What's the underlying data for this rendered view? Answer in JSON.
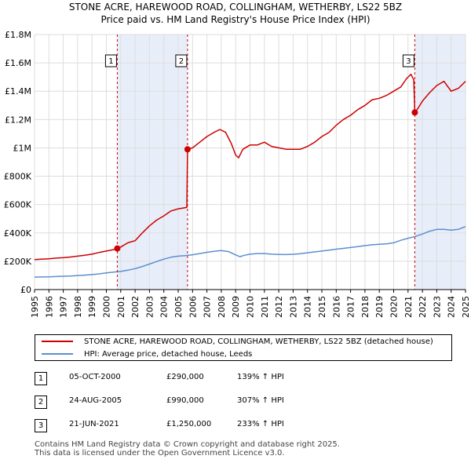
{
  "header": {
    "title_line1": "STONE ACRE, HAREWOOD ROAD, COLLINGHAM, WETHERBY, LS22 5BZ",
    "title_line2": "Price paid vs. HM Land Registry's House Price Index (HPI)"
  },
  "colors": {
    "property": "#cc0000",
    "hpi": "#5b8fd0",
    "shade": "#e8eef9",
    "marker_line": "#cc0000"
  },
  "chart_data": {
    "type": "line",
    "title": "STONE ACRE, HAREWOOD ROAD, COLLINGHAM, WETHERBY, LS22 5BZ",
    "subtitle": "Price paid vs. HM Land Registry's House Price Index (HPI)",
    "xlabel": "",
    "ylabel": "",
    "xlim": [
      1995,
      2025
    ],
    "ylim": [
      0,
      1800000
    ],
    "y_ticks": [
      0,
      200000,
      400000,
      600000,
      800000,
      1000000,
      1200000,
      1400000,
      1600000,
      1800000
    ],
    "y_tick_labels": [
      "£0",
      "£200K",
      "£400K",
      "£600K",
      "£800K",
      "£1M",
      "£1.2M",
      "£1.4M",
      "£1.6M",
      "£1.8M"
    ],
    "x_ticks": [
      1995,
      1996,
      1997,
      1998,
      1999,
      2000,
      2001,
      2002,
      2003,
      2004,
      2005,
      2006,
      2007,
      2008,
      2009,
      2010,
      2011,
      2012,
      2013,
      2014,
      2015,
      2016,
      2017,
      2018,
      2019,
      2020,
      2021,
      2022,
      2023,
      2024,
      2025
    ],
    "x_tick_labels": [
      "1995",
      "1996",
      "1997",
      "1998",
      "1999",
      "2000",
      "2001",
      "2002",
      "2003",
      "2004",
      "2005",
      "2006",
      "2007",
      "2008",
      "2009",
      "2010",
      "2011",
      "2012",
      "2013",
      "2014",
      "2015",
      "2016",
      "2017",
      "2018",
      "2019",
      "2020",
      "2021",
      "2022",
      "2023",
      "2024",
      "2025"
    ],
    "grid": true,
    "shaded_spans": [
      [
        2000.76,
        2005.65
      ],
      [
        2021.47,
        2025.0
      ]
    ],
    "series": [
      {
        "name": "STONE ACRE, HAREWOOD ROAD, COLLINGHAM, WETHERBY, LS22 5BZ (detached house)",
        "color": "#cc0000",
        "x": [
          1995,
          1995.5,
          1996,
          1996.5,
          1997,
          1997.5,
          1998,
          1998.5,
          1999,
          1999.5,
          2000,
          2000.5,
          2000.76,
          2001,
          2001.5,
          2002,
          2002.5,
          2003,
          2003.5,
          2004,
          2004.5,
          2005,
          2005.3,
          2005.6,
          2005.65,
          2006,
          2006.5,
          2007,
          2007.5,
          2007.9,
          2008.3,
          2008.7,
          2009.0,
          2009.2,
          2009.5,
          2010,
          2010.5,
          2011,
          2011.5,
          2012,
          2012.5,
          2013,
          2013.5,
          2014,
          2014.5,
          2015,
          2015.5,
          2016,
          2016.5,
          2017,
          2017.5,
          2018,
          2018.5,
          2019,
          2019.5,
          2020,
          2020.5,
          2020.9,
          2021.2,
          2021.4,
          2021.47,
          2021.7,
          2022,
          2022.5,
          2023,
          2023.5,
          2024,
          2024.5,
          2025
        ],
        "y": [
          212000,
          215000,
          217000,
          222000,
          225000,
          230000,
          236000,
          242000,
          250000,
          262000,
          272000,
          282000,
          290000,
          300000,
          330000,
          345000,
          400000,
          450000,
          490000,
          520000,
          555000,
          570000,
          575000,
          580000,
          990000,
          1000000,
          1040000,
          1080000,
          1110000,
          1130000,
          1110000,
          1030000,
          950000,
          930000,
          990000,
          1020000,
          1020000,
          1040000,
          1010000,
          1000000,
          990000,
          990000,
          990000,
          1010000,
          1040000,
          1080000,
          1110000,
          1160000,
          1200000,
          1230000,
          1270000,
          1300000,
          1340000,
          1350000,
          1370000,
          1400000,
          1430000,
          1490000,
          1520000,
          1480000,
          1250000,
          1280000,
          1330000,
          1390000,
          1440000,
          1470000,
          1400000,
          1420000,
          1470000
        ]
      },
      {
        "name": "HPI: Average price, detached house, Leeds",
        "color": "#5b8fd0",
        "x": [
          1995,
          1995.5,
          1996,
          1996.5,
          1997,
          1997.5,
          1998,
          1998.5,
          1999,
          1999.5,
          2000,
          2000.5,
          2001,
          2001.5,
          2002,
          2002.5,
          2003,
          2003.5,
          2004,
          2004.5,
          2005,
          2005.5,
          2006,
          2006.5,
          2007,
          2007.5,
          2008,
          2008.5,
          2009,
          2009.3,
          2009.6,
          2010,
          2010.5,
          2011,
          2011.5,
          2012,
          2012.5,
          2013,
          2013.5,
          2014,
          2014.5,
          2015,
          2015.5,
          2016,
          2016.5,
          2017,
          2017.5,
          2018,
          2018.5,
          2019,
          2019.5,
          2020,
          2020.5,
          2021,
          2021.5,
          2022,
          2022.5,
          2023,
          2023.5,
          2024,
          2024.5,
          2025
        ],
        "y": [
          88000,
          89000,
          90000,
          92000,
          94000,
          96000,
          99000,
          102000,
          106000,
          111000,
          118000,
          123000,
          128000,
          137000,
          148000,
          163000,
          180000,
          198000,
          215000,
          228000,
          236000,
          240000,
          246000,
          254000,
          263000,
          270000,
          275000,
          268000,
          245000,
          232000,
          242000,
          250000,
          254000,
          254000,
          250000,
          248000,
          247000,
          249000,
          253000,
          260000,
          266000,
          272000,
          278000,
          285000,
          291000,
          297000,
          303000,
          310000,
          316000,
          320000,
          323000,
          330000,
          348000,
          362000,
          375000,
          392000,
          412000,
          425000,
          425000,
          420000,
          425000,
          445000
        ]
      }
    ],
    "sales": [
      {
        "label": "1",
        "x": 2000.76,
        "y": 290000
      },
      {
        "label": "2",
        "x": 2005.65,
        "y": 990000
      },
      {
        "label": "3",
        "x": 2021.47,
        "y": 1250000
      }
    ]
  },
  "legend": {
    "property_label": "STONE ACRE, HAREWOOD ROAD, COLLINGHAM, WETHERBY, LS22 5BZ (detached house)",
    "hpi_label": "HPI: Average price, detached house, Leeds"
  },
  "sales_table": [
    {
      "num": "1",
      "date": "05-OCT-2000",
      "price": "£290,000",
      "hpi": "139% ↑ HPI"
    },
    {
      "num": "2",
      "date": "24-AUG-2005",
      "price": "£990,000",
      "hpi": "307% ↑ HPI"
    },
    {
      "num": "3",
      "date": "21-JUN-2021",
      "price": "£1,250,000",
      "hpi": "233% ↑ HPI"
    }
  ],
  "footer": {
    "line1": "Contains HM Land Registry data © Crown copyright and database right 2025.",
    "line2": "This data is licensed under the Open Government Licence v3.0."
  }
}
